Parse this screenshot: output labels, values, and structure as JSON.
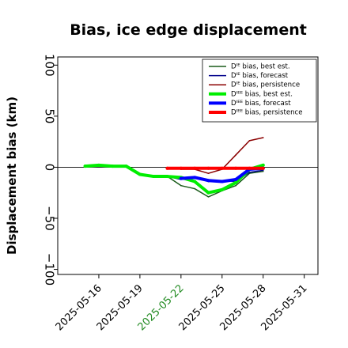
{
  "chart_data": {
    "type": "line",
    "title": "Bias, ice edge displacement",
    "xlabel": "",
    "ylabel": "Displacement bias (km)",
    "xlim": [
      "2025-05-13",
      "2025-06-01"
    ],
    "ylim": [
      -105,
      108
    ],
    "x_ticks": [
      "2025-05-16",
      "2025-05-19",
      "2025-05-22",
      "2025-05-25",
      "2025-05-28",
      "2025-05-31"
    ],
    "highlight_tick": "2025-05-22",
    "highlight_color": "#228b22",
    "y_ticks": [
      "100",
      "50",
      "0",
      "−50",
      "−100"
    ],
    "y_tick_values": [
      100,
      50,
      0,
      -50,
      -100
    ],
    "zero_line": true,
    "legend_position": "top-right",
    "series": [
      {
        "name": "Dᴵᴱ bias, best est.",
        "color": "#1a5c1a",
        "thick": false,
        "x": [
          "2025-05-15",
          "2025-05-16",
          "2025-05-17",
          "2025-05-18",
          "2025-05-19",
          "2025-05-20",
          "2025-05-21",
          "2025-05-22",
          "2025-05-23",
          "2025-05-24",
          "2025-05-25",
          "2025-05-26",
          "2025-05-27",
          "2025-05-28"
        ],
        "y": [
          1,
          2,
          1,
          1,
          -7,
          -9,
          -9,
          -18,
          -21,
          -29,
          -23,
          -18,
          -6,
          -4
        ]
      },
      {
        "name": "Dᴵᴱ bias, forecast",
        "color": "#00008b",
        "thick": false,
        "x": [
          "2025-05-20",
          "2025-05-21",
          "2025-05-22",
          "2025-05-23",
          "2025-05-24",
          "2025-05-25",
          "2025-05-26",
          "2025-05-27",
          "2025-05-28"
        ],
        "y": [
          -9,
          -9,
          -12,
          -10,
          -14,
          -13,
          -14,
          -5,
          -3
        ]
      },
      {
        "name": "Dᴵᴱ bias, persistence",
        "color": "#8b0000",
        "thick": false,
        "x": [
          "2025-05-22",
          "2025-05-23",
          "2025-05-24",
          "2025-05-25",
          "2025-05-26",
          "2025-05-27",
          "2025-05-28"
        ],
        "y": [
          -2,
          -2,
          -6,
          -2,
          12,
          26,
          29
        ]
      },
      {
        "name": "Dᴵᴱᴱ bias, best est.",
        "color": "#00ee00",
        "thick": true,
        "x": [
          "2025-05-15",
          "2025-05-16",
          "2025-05-17",
          "2025-05-18",
          "2025-05-19",
          "2025-05-20",
          "2025-05-21",
          "2025-05-22",
          "2025-05-23",
          "2025-05-24",
          "2025-05-25",
          "2025-05-26",
          "2025-05-27",
          "2025-05-28"
        ],
        "y": [
          1,
          2,
          1,
          1,
          -7,
          -9,
          -9,
          -10,
          -14,
          -25,
          -22,
          -15,
          -2,
          2
        ]
      },
      {
        "name": "Dᴵᴱᴱ bias, forecast",
        "color": "#0000ff",
        "thick": true,
        "x": [
          "2025-05-22",
          "2025-05-23",
          "2025-05-24",
          "2025-05-25",
          "2025-05-26",
          "2025-05-27",
          "2025-05-28"
        ],
        "y": [
          -11,
          -10,
          -13,
          -14,
          -12,
          -2,
          -1
        ]
      },
      {
        "name": "Dᴵᴱᴱ bias, persistence",
        "color": "#ff0000",
        "thick": true,
        "x": [
          "2025-05-21",
          "2025-05-22",
          "2025-05-23",
          "2025-05-24",
          "2025-05-25",
          "2025-05-26",
          "2025-05-27",
          "2025-05-28"
        ],
        "y": [
          -1,
          -1,
          -1,
          -1,
          -1,
          -1,
          -1,
          -1
        ]
      }
    ]
  }
}
